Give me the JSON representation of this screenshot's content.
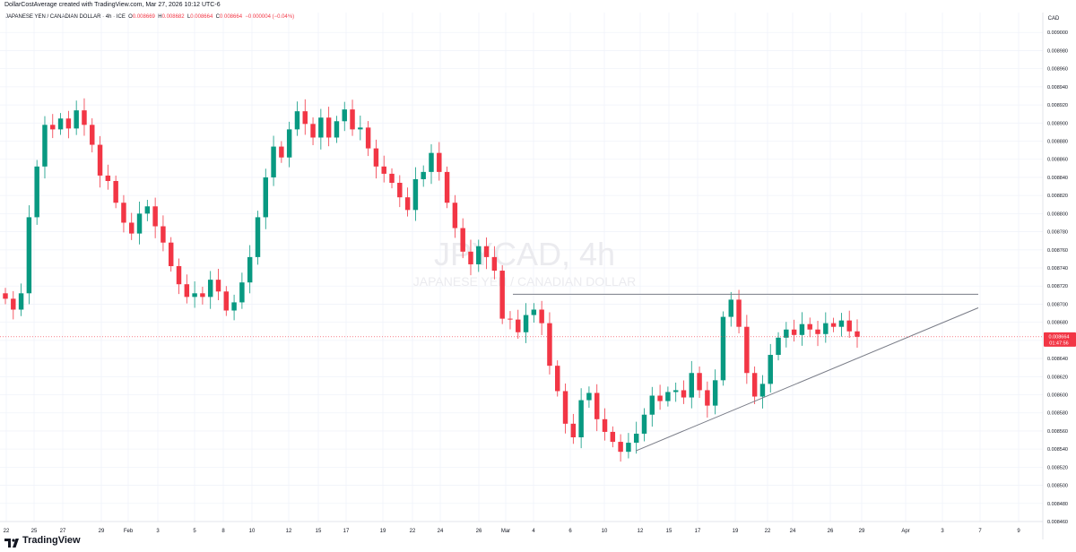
{
  "header": {
    "credit": "DollarCostAverage created with TradingView.com, Mar 27, 2026 10:12 UTC-6"
  },
  "legend": {
    "symbol": "JAPANESE YEN / CANADIAN DOLLAR · 4h · ICE",
    "open_label": "O",
    "open": "0.008669",
    "high_label": "H",
    "high": "0.008682",
    "low_label": "L",
    "low": "0.008664",
    "close_label": "C",
    "close": "0.008664",
    "change": "−0.000004 (−0.04%)"
  },
  "watermark": {
    "ticker": "JPYCAD, 4h",
    "name": "JAPANESE YEN / CANADIAN DOLLAR"
  },
  "price_axis": {
    "currency": "CAD",
    "current_price": "0.008664",
    "countdown": "01:47:56"
  },
  "footer": {
    "brand": "TradingView"
  },
  "colors": {
    "up": "#089981",
    "down": "#f23645",
    "grid": "#f0f3fa",
    "trendline": "#787b86",
    "text": "#131722"
  },
  "chart_data": {
    "type": "candlestick",
    "title": "JPYCAD, 4h",
    "xlabel": "",
    "ylabel": "",
    "ylim": [
      0.00846,
      0.009022
    ],
    "grid": true,
    "ticks_y": [
      "0.009000",
      "0.008980",
      "0.008960",
      "0.008940",
      "0.008920",
      "0.008900",
      "0.008880",
      "0.008860",
      "0.008840",
      "0.008820",
      "0.008800",
      "0.008780",
      "0.008760",
      "0.008740",
      "0.008720",
      "0.008700",
      "0.008680",
      "0.008660",
      "0.008640",
      "0.008620",
      "0.008600",
      "0.008580",
      "0.008560",
      "0.008540",
      "0.008520",
      "0.008500",
      "0.008480",
      "0.008460"
    ],
    "ticks_x": [
      "22",
      "25",
      "27",
      "29",
      "Feb",
      "3",
      "5",
      "8",
      "10",
      "12",
      "15",
      "17",
      "19",
      "22",
      "24",
      "26",
      "Mar",
      "4",
      "6",
      "10",
      "12",
      "15",
      "17",
      "19",
      "22",
      "24",
      "26",
      "29",
      "Apr",
      "3",
      "7",
      "9"
    ],
    "approx_closes": [
      0.008706,
      0.008694,
      0.008712,
      0.008796,
      0.008852,
      0.008898,
      0.008893,
      0.008905,
      0.008894,
      0.008914,
      0.008898,
      0.008876,
      0.008842,
      0.008836,
      0.008812,
      0.00879,
      0.008778,
      0.0088,
      0.008808,
      0.008786,
      0.008768,
      0.008742,
      0.008722,
      0.008708,
      0.008712,
      0.008708,
      0.008727,
      0.008714,
      0.008693,
      0.008702,
      0.008724,
      0.008752,
      0.008796,
      0.00884,
      0.008874,
      0.008862,
      0.008893,
      0.008913,
      0.008899,
      0.008884,
      0.008906,
      0.008884,
      0.008902,
      0.008915,
      0.008893,
      0.008895,
      0.008872,
      0.008852,
      0.008844,
      0.008834,
      0.008818,
      0.008804,
      0.008838,
      0.008846,
      0.008867,
      0.008846,
      0.008812,
      0.008784,
      0.008758,
      0.008744,
      0.008764,
      0.008752,
      0.008737,
      0.008684,
      0.008683,
      0.008669,
      0.008688,
      0.008694,
      0.008679,
      0.008632,
      0.008604,
      0.008568,
      0.008553,
      0.008594,
      0.008602,
      0.008573,
      0.008559,
      0.008548,
      0.008537,
      0.008547,
      0.008557,
      0.008578,
      0.008599,
      0.008593,
      0.008603,
      0.008605,
      0.008597,
      0.008624,
      0.008605,
      0.008588,
      0.008616,
      0.008686,
      0.008705,
      0.008675,
      0.008624,
      0.008598,
      0.008612,
      0.008644,
      0.008663,
      0.008672,
      0.008666,
      0.008678,
      0.008672,
      0.008667,
      0.008679,
      0.008675,
      0.008682,
      0.00867,
      0.008664
    ],
    "current_price": 0.008664,
    "resistance_level": 0.008711,
    "support_trendline": {
      "from": [
        0.008538
      ],
      "to": [
        0.008696
      ]
    }
  }
}
